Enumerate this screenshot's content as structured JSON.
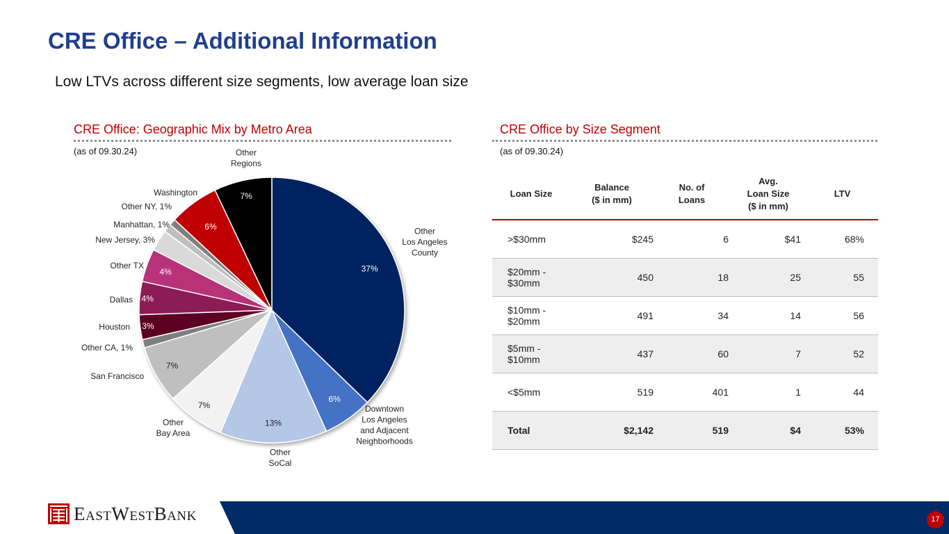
{
  "page": {
    "title": "CRE Office – Additional Information",
    "subtitle": "Low LTVs across different size segments, low average loan size",
    "page_number": "17",
    "logo_text": "EastWestBank"
  },
  "left_section": {
    "heading": "CRE Office: Geographic Mix by Metro Area",
    "as_of": "(as of 09.30.24)"
  },
  "right_section": {
    "heading": "CRE Office by Size Segment",
    "as_of": "(as of 09.30.24)",
    "table": {
      "headers": [
        "Loan Size",
        "Balance\n($ in mm)",
        "No. of\nLoans",
        "Avg.\nLoan Size\n($ in mm)",
        "LTV"
      ],
      "rows": [
        [
          ">$30mm",
          "$245",
          "6",
          "$41",
          "68%"
        ],
        [
          "$20mm - $30mm",
          "450",
          "18",
          "25",
          "55"
        ],
        [
          "$10mm - $20mm",
          "491",
          "34",
          "14",
          "56"
        ],
        [
          "$5mm - $10mm",
          "437",
          "60",
          "7",
          "52"
        ],
        [
          "<$5mm",
          "519",
          "401",
          "1",
          "44"
        ]
      ],
      "total": [
        "Total",
        "$2,142",
        "519",
        "$4",
        "53%"
      ]
    }
  },
  "chart_data": {
    "type": "pie",
    "title": "CRE Office: Geographic Mix by Metro Area",
    "start": "12 o'clock, clockwise",
    "slices": [
      {
        "label": "Other\nLos Angeles\nCounty",
        "value": 37,
        "pct_label": "37%",
        "color": "#002060",
        "label_color": "#ffffff"
      },
      {
        "label": "Downtown\nLos Angeles\nand Adjacent\nNeighborhoods",
        "value": 6,
        "pct_label": "6%",
        "color": "#4472c4",
        "label_color": "#ffffff"
      },
      {
        "label": "Other\nSoCal",
        "value": 13,
        "pct_label": "13%",
        "color": "#b4c7e7",
        "label_color": "#222222"
      },
      {
        "label": "Other\nBay Area",
        "value": 7,
        "pct_label": "7%",
        "color": "#f2f2f2",
        "label_color": "#222222"
      },
      {
        "label": "San Francisco",
        "value": 7,
        "pct_label": "7%",
        "color": "#bfbfbf",
        "label_color": "#222222"
      },
      {
        "label": "Other CA, 1%",
        "value": 1,
        "pct_label": "",
        "color": "#7f7f7f",
        "label_color": "#222222"
      },
      {
        "label": "Houston",
        "value": 3,
        "pct_label": "3%",
        "color": "#5b0020",
        "label_color": "#ffffff"
      },
      {
        "label": "Dallas",
        "value": 4,
        "pct_label": "4%",
        "color": "#8b1a57",
        "label_color": "#ffffff"
      },
      {
        "label": "Other TX",
        "value": 4,
        "pct_label": "4%",
        "color": "#b8307a",
        "label_color": "#ffffff"
      },
      {
        "label": "New Jersey, 3%",
        "value": 2.6,
        "pct_label": "",
        "color": "#d9d9d9",
        "label_color": "#222222"
      },
      {
        "label": "Manhattan, 1%",
        "value": 1,
        "pct_label": "",
        "color": "#bfbfbf",
        "label_color": "#222222"
      },
      {
        "label": "Other NY, 1%",
        "value": 0.8,
        "pct_label": "",
        "color": "#7f7f7f",
        "label_color": "#222222"
      },
      {
        "label": "Washington",
        "value": 6,
        "pct_label": "6%",
        "color": "#c00000",
        "label_color": "#ffffff"
      },
      {
        "label": "Other\nRegions",
        "value": 7,
        "pct_label": "7%",
        "color": "#000000",
        "label_color": "#ffffff"
      }
    ]
  },
  "colors": {
    "title": "#1f3f8f",
    "accent_red": "#c00000",
    "footer_blue": "#002b66"
  }
}
